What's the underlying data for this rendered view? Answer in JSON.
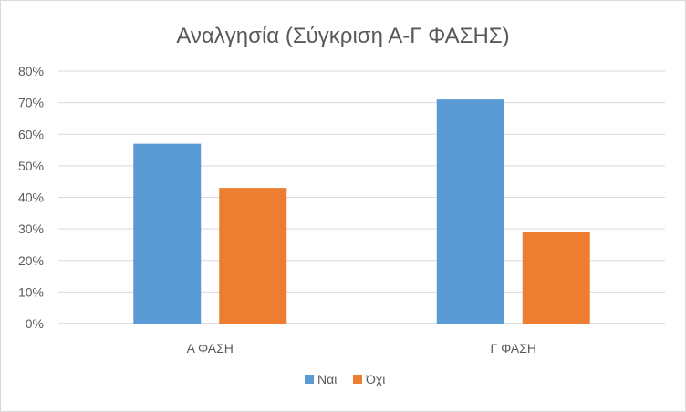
{
  "chart_data": {
    "type": "bar",
    "title": "Αναλγησία (Σύγκριση Α-Γ ΦΑΣΗΣ)",
    "categories": [
      "Α ΦΑΣΗ",
      "Γ ΦΑΣΗ"
    ],
    "series": [
      {
        "name": "Ναι",
        "values": [
          57,
          71
        ],
        "color": "#5b9bd5"
      },
      {
        "name": "Όχι",
        "values": [
          43,
          29
        ],
        "color": "#ed7d31"
      }
    ],
    "ylim": [
      0,
      80
    ],
    "yticks": [
      "0%",
      "10%",
      "20%",
      "30%",
      "40%",
      "50%",
      "60%",
      "70%",
      "80%"
    ],
    "grid": true,
    "legend_position": "bottom"
  }
}
